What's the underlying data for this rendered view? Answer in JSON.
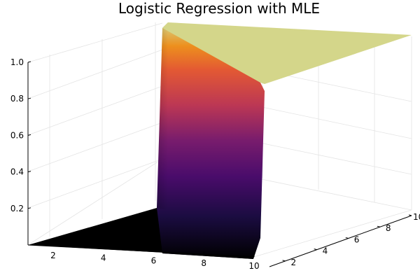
{
  "chart_data": {
    "type": "surface",
    "title": "Logistic Regression with MLE",
    "xlabel": "",
    "ylabel": "",
    "zlabel": "",
    "x_ticks": [
      2,
      4,
      6,
      8,
      10
    ],
    "y_ticks": [
      2,
      4,
      6,
      8,
      10
    ],
    "z_ticks": [
      0.2,
      0.4,
      0.6,
      0.8,
      1.0
    ],
    "x_tick_labels": [
      "2",
      "4",
      "6",
      "8",
      "10"
    ],
    "y_tick_labels": [
      "2",
      "4",
      "6",
      "8",
      "10"
    ],
    "z_tick_labels": [
      "0.2",
      "0.4",
      "0.6",
      "0.8",
      "1.0"
    ],
    "xlim": [
      1,
      10
    ],
    "ylim": [
      1,
      10
    ],
    "zlim": [
      0,
      1
    ],
    "grid": true,
    "legend": "none",
    "colormap": "inferno",
    "top_color": "#d4d68a",
    "surface_description_values": {
      "low_plateau_z": 0.0,
      "high_plateau_z": 1.0,
      "transition_x": 4.8
    }
  }
}
